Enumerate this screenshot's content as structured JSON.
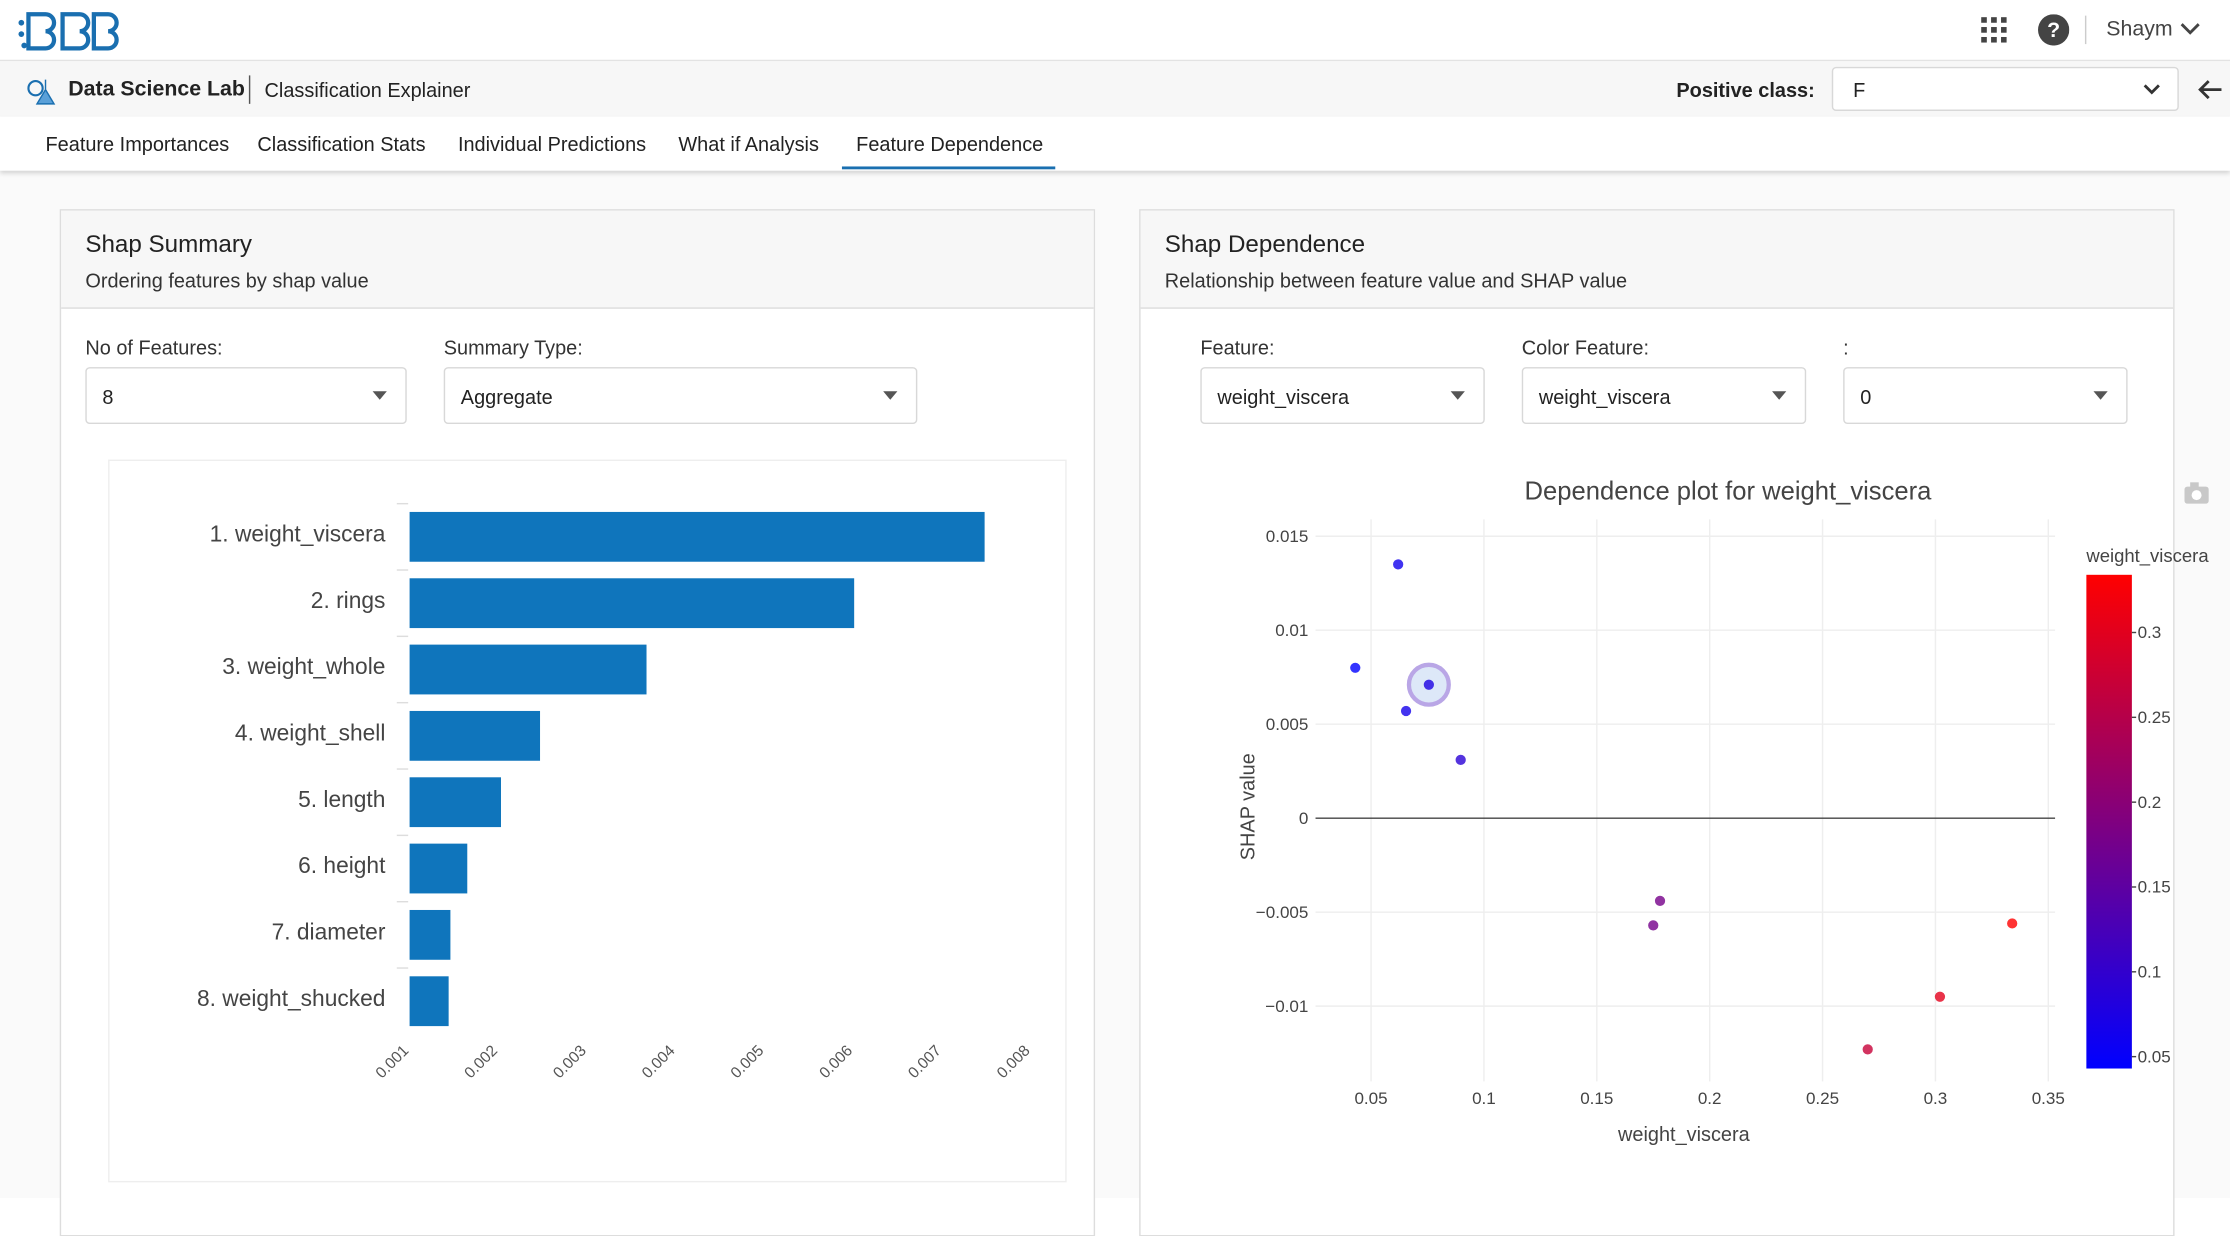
{
  "header": {
    "user": "Shaym"
  },
  "subheader": {
    "app": "Data Science Lab",
    "page": "Classification Explainer",
    "positive_class_label": "Positive class:",
    "positive_class": "F"
  },
  "tabs": {
    "items": [
      "Feature Importances",
      "Classification Stats",
      "Individual Predictions",
      "What if Analysis",
      "Feature Dependence"
    ],
    "active": 4
  },
  "summary_panel": {
    "title": "Shap Summary",
    "subtitle": "Ordering features by shap value",
    "controls": [
      {
        "label": "No of Features:",
        "value": "8"
      },
      {
        "label": "Summary Type:",
        "value": "Aggregate"
      }
    ],
    "chart": {
      "type": "bar",
      "orientation": "horizontal",
      "categories": [
        "1. weight_viscera",
        "2. rings",
        "3. weight_whole",
        "4. weight_shell",
        "5. length",
        "6. height",
        "7. diameter",
        "8. weight_shucked"
      ],
      "values": [
        0.00748,
        0.00601,
        0.00367,
        0.00247,
        0.00203,
        0.00165,
        0.00146,
        0.00144
      ],
      "color": "#0f75bc",
      "xlim": [
        0.001,
        0.0081
      ],
      "xticks": [
        0.001,
        0.002,
        0.003,
        0.004,
        0.005,
        0.006,
        0.007,
        0.008
      ]
    }
  },
  "dependence_panel": {
    "title": "Shap Dependence",
    "subtitle": "Relationship between feature value and SHAP value",
    "controls": [
      {
        "label": "Feature:",
        "value": "weight_viscera"
      },
      {
        "label": "Color Feature:",
        "value": "weight_viscera"
      },
      {
        "label": ":",
        "value": "0"
      }
    ],
    "chart": {
      "type": "scatter",
      "title": "Dependence plot for weight_viscera",
      "x_label": "weight_viscera",
      "y_label": "SHAP value",
      "x": [
        0.062,
        0.043,
        0.0756,
        0.0655,
        0.0897,
        0.178,
        0.175,
        0.334,
        0.302,
        0.27
      ],
      "y": [
        0.0135,
        0.008,
        0.0071,
        0.0057,
        0.0031,
        -0.0044,
        -0.0057,
        -0.0056,
        -0.0095,
        -0.0123
      ],
      "highlight": 2,
      "grid": true,
      "xlim": [
        0.0254,
        0.353
      ],
      "ylim": [
        -0.014,
        0.0159
      ],
      "xticks": [
        0.05,
        0.1,
        0.15,
        0.2,
        0.25,
        0.3,
        0.35
      ],
      "yticks": [
        {
          "value": -0.01,
          "label": "−0.01"
        },
        {
          "value": -0.005,
          "label": "−0.005"
        },
        0,
        0.005,
        0.01,
        0.015
      ],
      "colorbar": {
        "title": "weight_viscera",
        "colors": [
          "#0000ff",
          "#ff0000"
        ],
        "lim": [
          0.043,
          0.334
        ],
        "ticks": [
          0.05,
          0.1,
          0.15,
          0.2,
          0.25,
          0.3
        ]
      }
    }
  }
}
